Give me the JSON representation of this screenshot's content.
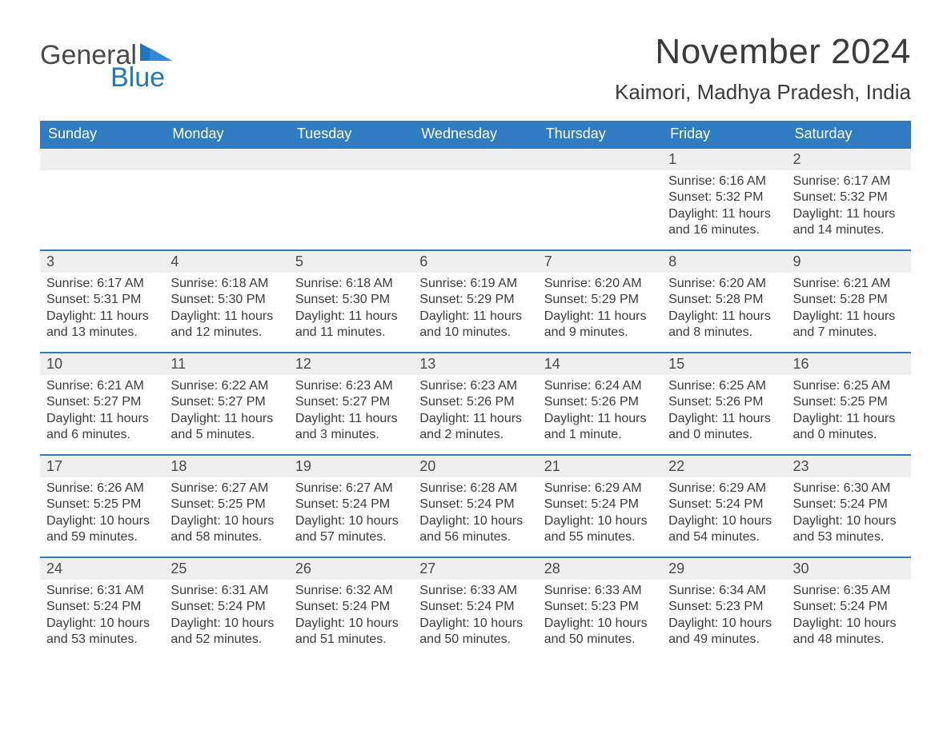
{
  "logo": {
    "text_general": "General",
    "text_blue": "Blue"
  },
  "title": "November 2024",
  "location": "Kaimori, Madhya Pradesh, India",
  "colors": {
    "header_bg": "#2f7cc2",
    "header_text": "#ffffff",
    "daynum_bg": "#efefef",
    "daynum_border": "#2f7cc2",
    "body_text": "#3b3b3b",
    "logo_gray": "#4a4a4a",
    "logo_blue": "#1f77c0",
    "page_bg": "#ffffff"
  },
  "day_headers": [
    "Sunday",
    "Monday",
    "Tuesday",
    "Wednesday",
    "Thursday",
    "Friday",
    "Saturday"
  ],
  "weeks": [
    [
      null,
      null,
      null,
      null,
      null,
      {
        "n": "1",
        "sunrise": "Sunrise: 6:16 AM",
        "sunset": "Sunset: 5:32 PM",
        "daylight": "Daylight: 11 hours and 16 minutes."
      },
      {
        "n": "2",
        "sunrise": "Sunrise: 6:17 AM",
        "sunset": "Sunset: 5:32 PM",
        "daylight": "Daylight: 11 hours and 14 minutes."
      }
    ],
    [
      {
        "n": "3",
        "sunrise": "Sunrise: 6:17 AM",
        "sunset": "Sunset: 5:31 PM",
        "daylight": "Daylight: 11 hours and 13 minutes."
      },
      {
        "n": "4",
        "sunrise": "Sunrise: 6:18 AM",
        "sunset": "Sunset: 5:30 PM",
        "daylight": "Daylight: 11 hours and 12 minutes."
      },
      {
        "n": "5",
        "sunrise": "Sunrise: 6:18 AM",
        "sunset": "Sunset: 5:30 PM",
        "daylight": "Daylight: 11 hours and 11 minutes."
      },
      {
        "n": "6",
        "sunrise": "Sunrise: 6:19 AM",
        "sunset": "Sunset: 5:29 PM",
        "daylight": "Daylight: 11 hours and 10 minutes."
      },
      {
        "n": "7",
        "sunrise": "Sunrise: 6:20 AM",
        "sunset": "Sunset: 5:29 PM",
        "daylight": "Daylight: 11 hours and 9 minutes."
      },
      {
        "n": "8",
        "sunrise": "Sunrise: 6:20 AM",
        "sunset": "Sunset: 5:28 PM",
        "daylight": "Daylight: 11 hours and 8 minutes."
      },
      {
        "n": "9",
        "sunrise": "Sunrise: 6:21 AM",
        "sunset": "Sunset: 5:28 PM",
        "daylight": "Daylight: 11 hours and 7 minutes."
      }
    ],
    [
      {
        "n": "10",
        "sunrise": "Sunrise: 6:21 AM",
        "sunset": "Sunset: 5:27 PM",
        "daylight": "Daylight: 11 hours and 6 minutes."
      },
      {
        "n": "11",
        "sunrise": "Sunrise: 6:22 AM",
        "sunset": "Sunset: 5:27 PM",
        "daylight": "Daylight: 11 hours and 5 minutes."
      },
      {
        "n": "12",
        "sunrise": "Sunrise: 6:23 AM",
        "sunset": "Sunset: 5:27 PM",
        "daylight": "Daylight: 11 hours and 3 minutes."
      },
      {
        "n": "13",
        "sunrise": "Sunrise: 6:23 AM",
        "sunset": "Sunset: 5:26 PM",
        "daylight": "Daylight: 11 hours and 2 minutes."
      },
      {
        "n": "14",
        "sunrise": "Sunrise: 6:24 AM",
        "sunset": "Sunset: 5:26 PM",
        "daylight": "Daylight: 11 hours and 1 minute."
      },
      {
        "n": "15",
        "sunrise": "Sunrise: 6:25 AM",
        "sunset": "Sunset: 5:26 PM",
        "daylight": "Daylight: 11 hours and 0 minutes."
      },
      {
        "n": "16",
        "sunrise": "Sunrise: 6:25 AM",
        "sunset": "Sunset: 5:25 PM",
        "daylight": "Daylight: 11 hours and 0 minutes."
      }
    ],
    [
      {
        "n": "17",
        "sunrise": "Sunrise: 6:26 AM",
        "sunset": "Sunset: 5:25 PM",
        "daylight": "Daylight: 10 hours and 59 minutes."
      },
      {
        "n": "18",
        "sunrise": "Sunrise: 6:27 AM",
        "sunset": "Sunset: 5:25 PM",
        "daylight": "Daylight: 10 hours and 58 minutes."
      },
      {
        "n": "19",
        "sunrise": "Sunrise: 6:27 AM",
        "sunset": "Sunset: 5:24 PM",
        "daylight": "Daylight: 10 hours and 57 minutes."
      },
      {
        "n": "20",
        "sunrise": "Sunrise: 6:28 AM",
        "sunset": "Sunset: 5:24 PM",
        "daylight": "Daylight: 10 hours and 56 minutes."
      },
      {
        "n": "21",
        "sunrise": "Sunrise: 6:29 AM",
        "sunset": "Sunset: 5:24 PM",
        "daylight": "Daylight: 10 hours and 55 minutes."
      },
      {
        "n": "22",
        "sunrise": "Sunrise: 6:29 AM",
        "sunset": "Sunset: 5:24 PM",
        "daylight": "Daylight: 10 hours and 54 minutes."
      },
      {
        "n": "23",
        "sunrise": "Sunrise: 6:30 AM",
        "sunset": "Sunset: 5:24 PM",
        "daylight": "Daylight: 10 hours and 53 minutes."
      }
    ],
    [
      {
        "n": "24",
        "sunrise": "Sunrise: 6:31 AM",
        "sunset": "Sunset: 5:24 PM",
        "daylight": "Daylight: 10 hours and 53 minutes."
      },
      {
        "n": "25",
        "sunrise": "Sunrise: 6:31 AM",
        "sunset": "Sunset: 5:24 PM",
        "daylight": "Daylight: 10 hours and 52 minutes."
      },
      {
        "n": "26",
        "sunrise": "Sunrise: 6:32 AM",
        "sunset": "Sunset: 5:24 PM",
        "daylight": "Daylight: 10 hours and 51 minutes."
      },
      {
        "n": "27",
        "sunrise": "Sunrise: 6:33 AM",
        "sunset": "Sunset: 5:24 PM",
        "daylight": "Daylight: 10 hours and 50 minutes."
      },
      {
        "n": "28",
        "sunrise": "Sunrise: 6:33 AM",
        "sunset": "Sunset: 5:23 PM",
        "daylight": "Daylight: 10 hours and 50 minutes."
      },
      {
        "n": "29",
        "sunrise": "Sunrise: 6:34 AM",
        "sunset": "Sunset: 5:23 PM",
        "daylight": "Daylight: 10 hours and 49 minutes."
      },
      {
        "n": "30",
        "sunrise": "Sunrise: 6:35 AM",
        "sunset": "Sunset: 5:24 PM",
        "daylight": "Daylight: 10 hours and 48 minutes."
      }
    ]
  ]
}
